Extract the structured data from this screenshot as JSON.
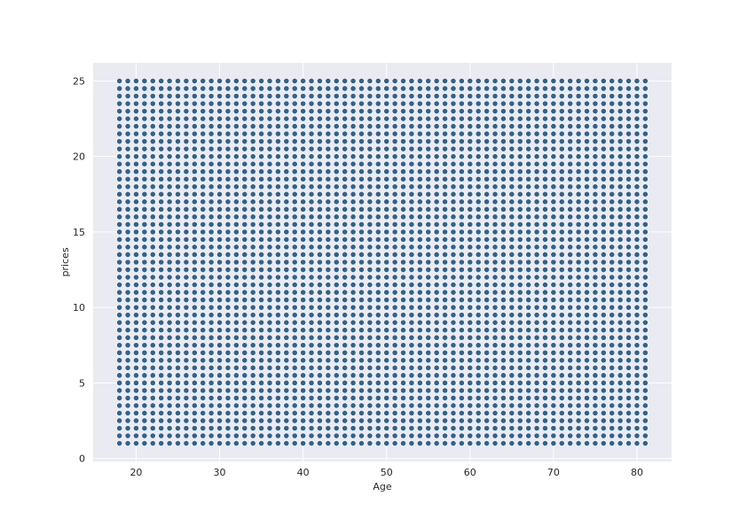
{
  "chart_data": {
    "type": "scatter",
    "title": "",
    "xlabel": "Age",
    "ylabel": "prices",
    "xlim": [
      14.85,
      84.15
    ],
    "ylim": [
      -0.2,
      26.2
    ],
    "x_ticks": [
      20,
      30,
      40,
      50,
      60,
      70,
      80
    ],
    "y_ticks": [
      0,
      5,
      10,
      15,
      20,
      25
    ],
    "grid": true,
    "legend": "none",
    "x_values": "every integer age from 18 to 81",
    "y_values": "0.5 increments from 1 to 25 for each age",
    "x_min": 18,
    "x_max": 81,
    "x_step": 1,
    "y_min": 1,
    "y_max": 25,
    "y_step": 0.5,
    "colors": {
      "background": "#eaeaf2",
      "grid": "#ffffff",
      "marker_fill": "#31628c",
      "marker_edge": "#ffffff"
    }
  }
}
